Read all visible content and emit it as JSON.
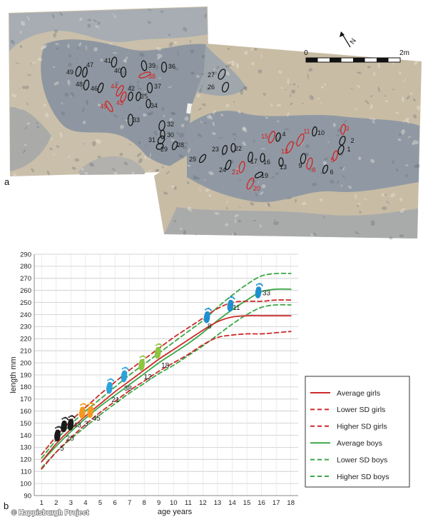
{
  "figure": {
    "panel_a_label": "a",
    "panel_b_label": "b",
    "copyright": "© Happisburgh Project"
  },
  "panel_a": {
    "scale_bar": {
      "start_label": "0",
      "end_label": "2m"
    },
    "north_label": "N",
    "footprints": [
      {
        "id": "49",
        "color": "#141414"
      },
      {
        "id": "47",
        "color": "#141414"
      },
      {
        "id": "41",
        "color": "#141414"
      },
      {
        "id": "40",
        "color": "#141414"
      },
      {
        "id": "39",
        "color": "#141414"
      },
      {
        "id": "36",
        "color": "#141414"
      },
      {
        "id": "38",
        "color": "#d22323"
      },
      {
        "id": "48",
        "color": "#141414"
      },
      {
        "id": "46",
        "color": "#141414"
      },
      {
        "id": "44",
        "color": "#d22323"
      },
      {
        "id": "42",
        "color": "#141414"
      },
      {
        "id": "37",
        "color": "#141414"
      },
      {
        "id": "35",
        "color": "#141414"
      },
      {
        "id": "45",
        "color": "#d22323"
      },
      {
        "id": "43",
        "color": "#d22323"
      },
      {
        "id": "34",
        "color": "#141414"
      },
      {
        "id": "33",
        "color": "#141414"
      },
      {
        "id": "32",
        "color": "#141414"
      },
      {
        "id": "30",
        "color": "#141414"
      },
      {
        "id": "31",
        "color": "#141414"
      },
      {
        "id": "29",
        "color": "#141414"
      },
      {
        "id": "28",
        "color": "#141414"
      },
      {
        "id": "27",
        "color": "#141414"
      },
      {
        "id": "26",
        "color": "#141414"
      },
      {
        "id": "25",
        "color": "#141414"
      },
      {
        "id": "23",
        "color": "#141414"
      },
      {
        "id": "22",
        "color": "#141414"
      },
      {
        "id": "24",
        "color": "#141414"
      },
      {
        "id": "21",
        "color": "#d22323"
      },
      {
        "id": "17",
        "color": "#141414"
      },
      {
        "id": "16",
        "color": "#141414"
      },
      {
        "id": "19",
        "color": "#141414"
      },
      {
        "id": "20",
        "color": "#d22323"
      },
      {
        "id": "13",
        "color": "#141414"
      },
      {
        "id": "15",
        "color": "#d22323"
      },
      {
        "id": "4",
        "color": "#141414"
      },
      {
        "id": "12",
        "color": "#d22323"
      },
      {
        "id": "11",
        "color": "#d22323"
      },
      {
        "id": "10",
        "color": "#141414"
      },
      {
        "id": "9",
        "color": "#141414"
      },
      {
        "id": "8",
        "color": "#d22323"
      },
      {
        "id": "3",
        "color": "#d22323"
      },
      {
        "id": "2",
        "color": "#141414"
      },
      {
        "id": "1",
        "color": "#141414"
      },
      {
        "id": "5",
        "color": "#d22323"
      },
      {
        "id": "6",
        "color": "#141414"
      }
    ]
  },
  "chart_data": {
    "type": "line",
    "xlabel": "age years",
    "ylabel": "length mm",
    "xlim": [
      0.5,
      18.5
    ],
    "ylim": [
      90,
      290
    ],
    "xticks": [
      1,
      2,
      3,
      4,
      5,
      6,
      7,
      8,
      9,
      10,
      11,
      12,
      13,
      14,
      15,
      16,
      17,
      18
    ],
    "yticks": [
      90,
      100,
      110,
      120,
      130,
      140,
      150,
      160,
      170,
      180,
      190,
      200,
      210,
      220,
      230,
      240,
      250,
      260,
      270,
      280,
      290
    ],
    "grid": {
      "horizontal": true,
      "vertical": true
    },
    "legend_position": "right",
    "x": [
      1,
      2,
      3,
      4,
      5,
      6,
      7,
      8,
      9,
      10,
      11,
      12,
      13,
      14,
      15,
      16,
      17,
      18
    ],
    "series": [
      {
        "name": "Average girls",
        "color": "#cc2a2a",
        "dash": "solid",
        "values": [
          118,
          133,
          145,
          156,
          166,
          176,
          185,
          194,
          203,
          211,
          219,
          227,
          234,
          238,
          239,
          239,
          239,
          239
        ]
      },
      {
        "name": "Lower SD girls",
        "color": "#cc2a2a",
        "dash": "dashed",
        "values": [
          112,
          126,
          138,
          149,
          159,
          168,
          177,
          185,
          193,
          200,
          207,
          215,
          221,
          223,
          224,
          224,
          225,
          226
        ]
      },
      {
        "name": "Higher SD girls",
        "color": "#cc2a2a",
        "dash": "dashed",
        "values": [
          124,
          139,
          152,
          163,
          174,
          184,
          194,
          203,
          212,
          221,
          229,
          237,
          245,
          250,
          251,
          251,
          252,
          252
        ]
      },
      {
        "name": "Average boys",
        "color": "#3aa845",
        "dash": "solid",
        "values": [
          118,
          131,
          143,
          154,
          164,
          173,
          182,
          191,
          200,
          208,
          216,
          225,
          235,
          244,
          252,
          259,
          261,
          261
        ]
      },
      {
        "name": "Lower SD boys",
        "color": "#3aa845",
        "dash": "dashed",
        "values": [
          113,
          126,
          137,
          147,
          157,
          166,
          175,
          183,
          191,
          198,
          206,
          214,
          223,
          232,
          240,
          246,
          248,
          248
        ]
      },
      {
        "name": "Higher SD boys",
        "color": "#3aa845",
        "dash": "dashed",
        "values": [
          121,
          136,
          149,
          160,
          170,
          180,
          190,
          199,
          208,
          217,
          226,
          235,
          246,
          256,
          265,
          272,
          274,
          274
        ]
      }
    ],
    "footprints": [
      {
        "label": "5",
        "age": 2.1,
        "length": 141,
        "color": "#1a1a1a"
      },
      {
        "label": "20",
        "age": 2.55,
        "length": 148.5,
        "color": "#1a1a1a"
      },
      {
        "label": "43",
        "age": 3.0,
        "length": 150,
        "color": "#1a1a1a"
      },
      {
        "label": "3",
        "age": 3.8,
        "length": 160,
        "color": "#f39a1e"
      },
      {
        "label": "45",
        "age": 4.35,
        "length": 160.5,
        "color": "#f39a1e"
      },
      {
        "label": "21",
        "age": 5.65,
        "length": 180.5,
        "color": "#2aa3dc"
      },
      {
        "label": "38",
        "age": 6.65,
        "length": 190,
        "color": "#2aa3dc"
      },
      {
        "label": "12",
        "age": 7.85,
        "length": 199.5,
        "color": "#8dc63f"
      },
      {
        "label": "18",
        "age": 8.95,
        "length": 209.5,
        "color": "#8dc63f"
      },
      {
        "label": "8",
        "age": 12.3,
        "length": 239,
        "color": "#1e8fcf"
      },
      {
        "label": "11",
        "age": 13.9,
        "length": 248.5,
        "color": "#1e8fcf"
      },
      {
        "label": "33",
        "age": 15.8,
        "length": 259.5,
        "color": "#1e8fcf"
      }
    ]
  }
}
